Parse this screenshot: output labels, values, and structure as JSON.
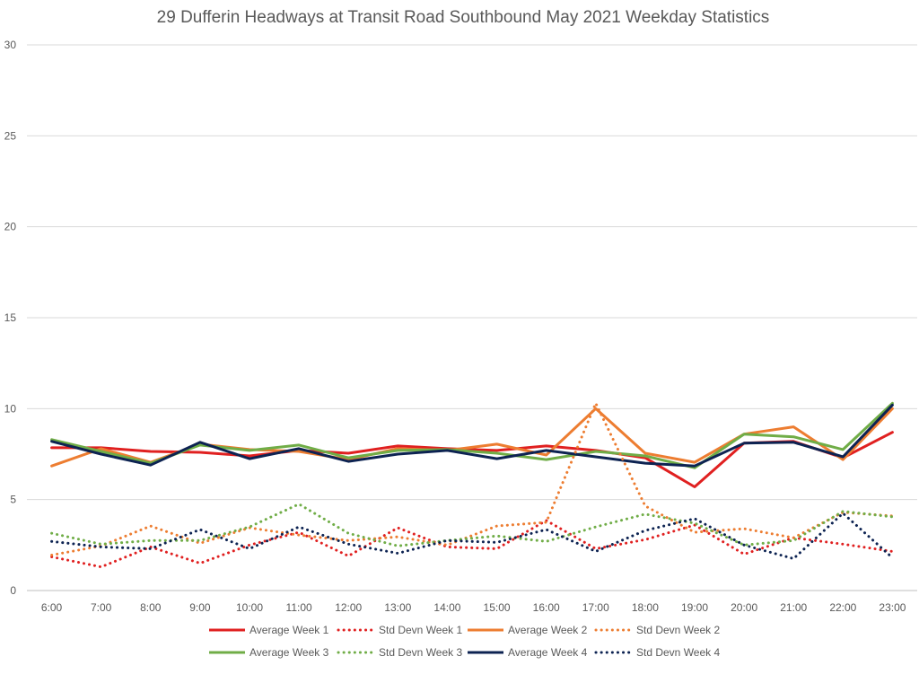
{
  "chart_data": {
    "type": "line",
    "title": "29 Dufferin Headways at Transit Road Southbound May 2021 Weekday Statistics",
    "xlabel": "",
    "ylabel": "",
    "ylim": [
      0,
      30
    ],
    "yticks": [
      0,
      5,
      10,
      15,
      20,
      25,
      30
    ],
    "grid": true,
    "legend": "bottom",
    "categories": [
      "6:00",
      "7:00",
      "8:00",
      "9:00",
      "10:00",
      "11:00",
      "12:00",
      "13:00",
      "14:00",
      "15:00",
      "16:00",
      "17:00",
      "18:00",
      "19:00",
      "20:00",
      "21:00",
      "22:00",
      "23:00"
    ],
    "series": [
      {
        "name": "Average Week 1",
        "color": "#e02020",
        "dash": "solid",
        "values": [
          7.85,
          7.85,
          7.65,
          7.6,
          7.4,
          7.7,
          7.55,
          7.95,
          7.8,
          7.7,
          7.95,
          7.7,
          7.3,
          5.7,
          8.1,
          8.2,
          7.3,
          8.7
        ]
      },
      {
        "name": "Std Devn Week 1",
        "color": "#e02020",
        "dash": "dotted",
        "values": [
          1.85,
          1.3,
          2.4,
          1.5,
          2.5,
          3.2,
          1.9,
          3.45,
          2.4,
          2.3,
          3.85,
          2.3,
          2.8,
          3.6,
          2.0,
          2.9,
          2.55,
          2.15
        ]
      },
      {
        "name": "Average Week 2",
        "color": "#ed7d31",
        "dash": "solid",
        "values": [
          6.85,
          7.8,
          7.05,
          8.05,
          7.75,
          7.65,
          7.2,
          7.8,
          7.7,
          8.05,
          7.45,
          10.0,
          7.55,
          7.05,
          8.6,
          9.0,
          7.2,
          10.0
        ]
      },
      {
        "name": "Std Devn Week 2",
        "color": "#ed7d31",
        "dash": "dotted",
        "values": [
          1.95,
          2.45,
          3.55,
          2.6,
          3.45,
          3.05,
          2.75,
          2.95,
          2.5,
          3.55,
          3.75,
          10.3,
          4.65,
          3.2,
          3.4,
          2.9,
          4.3,
          4.1
        ]
      },
      {
        "name": "Average Week 3",
        "color": "#70ad47",
        "dash": "solid",
        "values": [
          8.3,
          7.65,
          7.0,
          8.0,
          7.7,
          8.0,
          7.3,
          7.7,
          7.75,
          7.55,
          7.2,
          7.65,
          7.4,
          6.75,
          8.6,
          8.45,
          7.75,
          10.3
        ]
      },
      {
        "name": "Std Devn Week 3",
        "color": "#70ad47",
        "dash": "dotted",
        "values": [
          3.15,
          2.55,
          2.75,
          2.75,
          3.5,
          4.75,
          3.15,
          2.45,
          2.75,
          3.0,
          2.7,
          3.5,
          4.2,
          3.7,
          2.5,
          2.75,
          4.35,
          4.05
        ]
      },
      {
        "name": "Average Week 4",
        "color": "#0d2352",
        "dash": "solid",
        "values": [
          8.2,
          7.5,
          6.9,
          8.15,
          7.25,
          7.8,
          7.1,
          7.5,
          7.7,
          7.25,
          7.7,
          7.35,
          7.0,
          6.85,
          8.1,
          8.15,
          7.35,
          10.2
        ]
      },
      {
        "name": "Std Devn Week 4",
        "color": "#0d2352",
        "dash": "dotted",
        "values": [
          2.7,
          2.4,
          2.3,
          3.35,
          2.3,
          3.5,
          2.55,
          2.05,
          2.75,
          2.65,
          3.35,
          2.15,
          3.3,
          3.95,
          2.5,
          1.75,
          4.25,
          1.8
        ]
      }
    ]
  }
}
